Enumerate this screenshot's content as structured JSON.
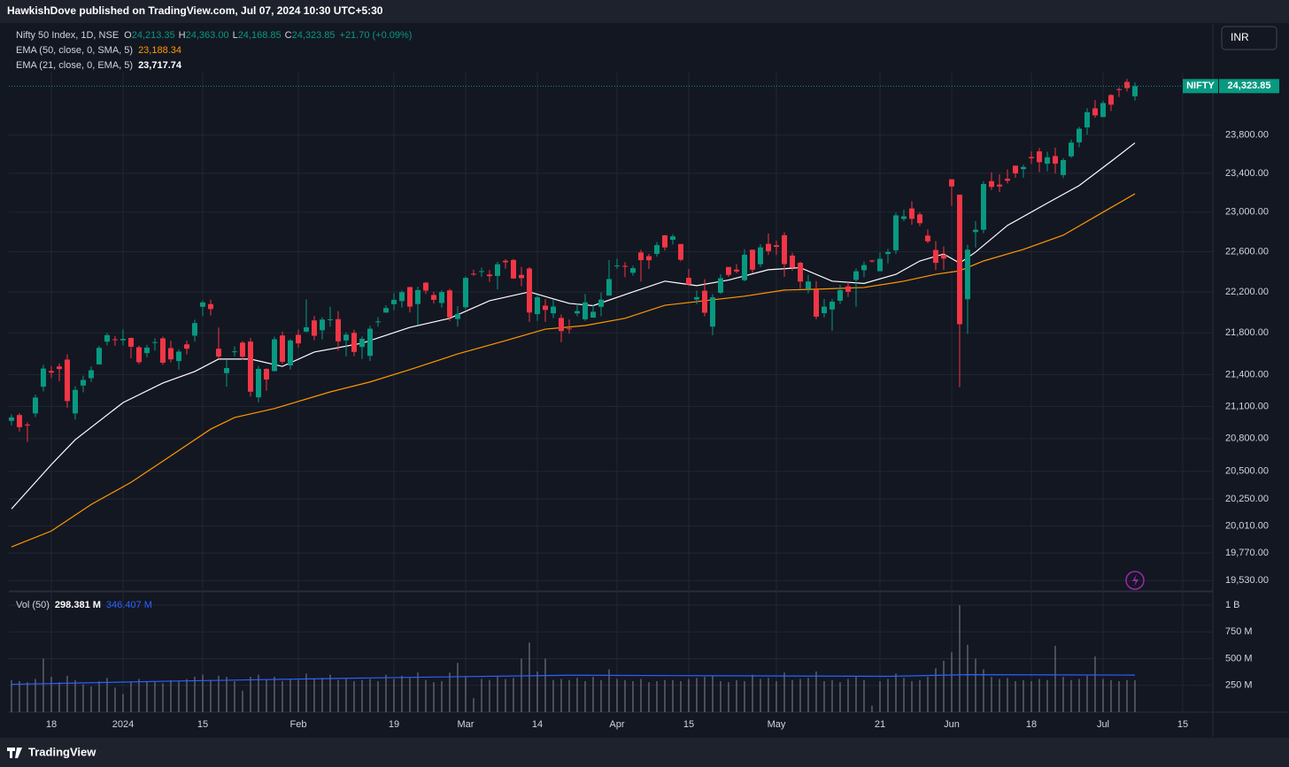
{
  "header": "HawkishDove published on TradingView.com, Jul 07, 2024 10:30 UTC+5:30",
  "brand": "TradingView",
  "currency": "INR",
  "chart_data": {
    "type": "candlestick",
    "legend": {
      "symbol": "Nifty 50 Index, 1D, NSE",
      "ohlc_keys": [
        "O",
        "H",
        "L",
        "C"
      ],
      "ohlc_values": [
        "24,213.35",
        "24,363.00",
        "24,168.85",
        "24,323.85"
      ],
      "change": "+21.70 (+0.09%)"
    },
    "price_tag": {
      "name": "NIFTY",
      "label": "24,323.85"
    },
    "up_color": "#089981",
    "down_color": "#f23645",
    "log_scale": true,
    "grid": true,
    "xlim": [
      -0.33,
      150.78
    ],
    "ylim": [
      19440,
      24490
    ],
    "xticks": [
      {
        "value": 5,
        "label": "18"
      },
      {
        "value": 14,
        "label": "2024"
      },
      {
        "value": 24,
        "label": "15"
      },
      {
        "value": 36,
        "label": "Feb"
      },
      {
        "value": 48,
        "label": "19"
      },
      {
        "value": 57,
        "label": "Mar"
      },
      {
        "value": 66,
        "label": "14"
      },
      {
        "value": 76,
        "label": "Apr"
      },
      {
        "value": 85,
        "label": "15"
      },
      {
        "value": 96,
        "label": "May"
      },
      {
        "value": 109,
        "label": "21"
      },
      {
        "value": 118,
        "label": "Jun"
      },
      {
        "value": 128,
        "label": "18"
      },
      {
        "value": 137,
        "label": "Jul"
      },
      {
        "value": 147,
        "label": "15"
      }
    ],
    "yticks": [
      {
        "value": 23800,
        "label": "23,800.00"
      },
      {
        "value": 23400,
        "label": "23,400.00"
      },
      {
        "value": 23000,
        "label": "23,000.00"
      },
      {
        "value": 22600,
        "label": "22,600.00"
      },
      {
        "value": 22200,
        "label": "22,200.00"
      },
      {
        "value": 21800,
        "label": "21,800.00"
      },
      {
        "value": 21400,
        "label": "21,400.00"
      },
      {
        "value": 21100,
        "label": "21,100.00"
      },
      {
        "value": 20800,
        "label": "20,800.00"
      },
      {
        "value": 20500,
        "label": "20,500.00"
      },
      {
        "value": 20250,
        "label": "20,250.00"
      },
      {
        "value": 20010,
        "label": "20,010.00"
      },
      {
        "value": 19770,
        "label": "19,770.00"
      },
      {
        "value": 19530,
        "label": "19,530.00"
      }
    ],
    "candles": [
      [
        20965,
        21026,
        20923,
        20997
      ],
      [
        21019,
        21037,
        20867,
        20906
      ],
      [
        20930,
        20950,
        20770,
        20926
      ],
      [
        21034,
        21210,
        21000,
        21183
      ],
      [
        21285,
        21493,
        21240,
        21457
      ],
      [
        21434,
        21482,
        21366,
        21419
      ],
      [
        21477,
        21505,
        21337,
        21453
      ],
      [
        21543,
        21593,
        21088,
        21150
      ],
      [
        21034,
        21289,
        20977,
        21255
      ],
      [
        21296,
        21390,
        21232,
        21349
      ],
      [
        21366,
        21477,
        21329,
        21441
      ],
      [
        21497,
        21675,
        21495,
        21655
      ],
      [
        21715,
        21801,
        21678,
        21778
      ],
      [
        21738,
        21770,
        21676,
        21731
      ],
      [
        21728,
        21834,
        21680,
        21742
      ],
      [
        21751,
        21755,
        21555,
        21666
      ],
      [
        21661,
        21677,
        21500,
        21518
      ],
      [
        21605,
        21685,
        21564,
        21658
      ],
      [
        21705,
        21749,
        21629,
        21711
      ],
      [
        21747,
        21763,
        21493,
        21513
      ],
      [
        21653,
        21724,
        21517,
        21545
      ],
      [
        21529,
        21641,
        21448,
        21619
      ],
      [
        21689,
        21726,
        21593,
        21647
      ],
      [
        21773,
        21928,
        21715,
        21895
      ],
      [
        22054,
        22115,
        21963,
        22097
      ],
      [
        22080,
        22124,
        21969,
        22032
      ],
      [
        21647,
        21851,
        21550,
        21572
      ],
      [
        21414,
        21539,
        21285,
        21462
      ],
      [
        21615,
        21670,
        21575,
        21622
      ],
      [
        21706,
        21722,
        21541,
        21571
      ],
      [
        21716,
        21750,
        21192,
        21238
      ],
      [
        21185,
        21482,
        21138,
        21454
      ],
      [
        21454,
        21459,
        21247,
        21353
      ],
      [
        21433,
        21763,
        21430,
        21738
      ],
      [
        21775,
        21813,
        21501,
        21522
      ],
      [
        21487,
        21741,
        21448,
        21726
      ],
      [
        21781,
        21832,
        21658,
        21698
      ],
      [
        21812,
        22127,
        21805,
        21854
      ],
      [
        21921,
        21964,
        21730,
        21772
      ],
      [
        21825,
        21951,
        21737,
        21929
      ],
      [
        21931,
        22054,
        21860,
        21931
      ],
      [
        21933,
        22011,
        21629,
        21718
      ],
      [
        21727,
        21805,
        21574,
        21783
      ],
      [
        21800,
        21831,
        21575,
        21616
      ],
      [
        21664,
        21766,
        21549,
        21743
      ],
      [
        21579,
        21870,
        21530,
        21840
      ],
      [
        21906,
        21953,
        21860,
        21911
      ],
      [
        21997,
        22069,
        21997,
        22041
      ],
      [
        22079,
        22187,
        22021,
        22122
      ],
      [
        22110,
        22216,
        22046,
        22197
      ],
      [
        22248,
        22249,
        21998,
        22055
      ],
      [
        22081,
        22252,
        21875,
        22218
      ],
      [
        22291,
        22298,
        22180,
        22213
      ],
      [
        22170,
        22202,
        22086,
        22122
      ],
      [
        22091,
        22218,
        22045,
        22198
      ],
      [
        22215,
        22230,
        21915,
        21951
      ],
      [
        21935,
        22060,
        21860,
        21983
      ],
      [
        22049,
        22353,
        22027,
        22339
      ],
      [
        22380,
        22420,
        22360,
        22379
      ],
      [
        22403,
        22440,
        22349,
        22406
      ],
      [
        22372,
        22416,
        22300,
        22356
      ],
      [
        22358,
        22498,
        22224,
        22474
      ],
      [
        22509,
        22525,
        22430,
        22494
      ],
      [
        22517,
        22527,
        22330,
        22333
      ],
      [
        22368,
        22447,
        22256,
        22336
      ],
      [
        22432,
        22447,
        21906,
        21998
      ],
      [
        21982,
        22166,
        21917,
        22147
      ],
      [
        22065,
        22129,
        21906,
        22023
      ],
      [
        21990,
        22123,
        21944,
        22056
      ],
      [
        21945,
        21978,
        21710,
        21817
      ],
      [
        21843,
        21931,
        21793,
        21839
      ],
      [
        21989,
        22081,
        21962,
        22012
      ],
      [
        21932,
        22180,
        21918,
        22097
      ],
      [
        21948,
        22073,
        21947,
        22005
      ],
      [
        22053,
        22193,
        21961,
        22124
      ],
      [
        22164,
        22516,
        22164,
        22327
      ],
      [
        22455,
        22530,
        22428,
        22462
      ],
      [
        22458,
        22495,
        22346,
        22453
      ],
      [
        22389,
        22460,
        22361,
        22435
      ],
      [
        22592,
        22619,
        22303,
        22515
      ],
      [
        22555,
        22579,
        22427,
        22514
      ],
      [
        22578,
        22697,
        22550,
        22666
      ],
      [
        22765,
        22768,
        22612,
        22643
      ],
      [
        22720,
        22775,
        22673,
        22754
      ],
      [
        22677,
        22677,
        22504,
        22519
      ],
      [
        22339,
        22427,
        22259,
        22273
      ],
      [
        22125,
        22213,
        22079,
        22148
      ],
      [
        22212,
        22326,
        21961,
        21996
      ],
      [
        21861,
        22180,
        21777,
        22147
      ],
      [
        22191,
        22375,
        22180,
        22336
      ],
      [
        22447,
        22447,
        22349,
        22368
      ],
      [
        22421,
        22476,
        22384,
        22402
      ],
      [
        22316,
        22625,
        22305,
        22570
      ],
      [
        22620,
        22620,
        22385,
        22420
      ],
      [
        22475,
        22675,
        22447,
        22643
      ],
      [
        22679,
        22783,
        22568,
        22605
      ],
      [
        22665,
        22711,
        22567,
        22648
      ],
      [
        22766,
        22795,
        22349,
        22476
      ],
      [
        22561,
        22589,
        22410,
        22442
      ],
      [
        22489,
        22500,
        22232,
        22302
      ],
      [
        22231,
        22368,
        22186,
        22303
      ],
      [
        22224,
        22307,
        21932,
        21958
      ],
      [
        21991,
        22131,
        21950,
        22055
      ],
      [
        22027,
        22131,
        21821,
        22104
      ],
      [
        22113,
        22270,
        22081,
        22217
      ],
      [
        22255,
        22297,
        22151,
        22201
      ],
      [
        22319,
        22432,
        22054,
        22404
      ],
      [
        22415,
        22502,
        22345,
        22466
      ],
      [
        22512,
        22520,
        22490,
        22502
      ],
      [
        22405,
        22591,
        22404,
        22529
      ],
      [
        22577,
        22629,
        22483,
        22597
      ],
      [
        22614,
        22993,
        22577,
        22967
      ],
      [
        22931,
        23026,
        22908,
        22957
      ],
      [
        23038,
        23111,
        22871,
        22932
      ],
      [
        22977,
        22999,
        22858,
        22888
      ],
      [
        22762,
        22825,
        22685,
        22704
      ],
      [
        22617,
        22706,
        22418,
        22488
      ],
      [
        22568,
        22653,
        22417,
        22531
      ],
      [
        23338,
        23338,
        23063,
        23264
      ],
      [
        23180,
        23180,
        21281,
        21884
      ],
      [
        22128,
        22670,
        21791,
        22620
      ],
      [
        22798,
        22910,
        22642,
        22821
      ],
      [
        22821,
        23320,
        22786,
        23290
      ],
      [
        23319,
        23412,
        23227,
        23259
      ],
      [
        23283,
        23389,
        23206,
        23264
      ],
      [
        23344,
        23441,
        23295,
        23323
      ],
      [
        23480,
        23481,
        23354,
        23399
      ],
      [
        23444,
        23490,
        23354,
        23466
      ],
      [
        23570,
        23630,
        23497,
        23557
      ],
      [
        23629,
        23665,
        23413,
        23516
      ],
      [
        23500,
        23625,
        23420,
        23567
      ],
      [
        23580,
        23668,
        23398,
        23501
      ],
      [
        23382,
        23558,
        23350,
        23538
      ],
      [
        23577,
        23754,
        23562,
        23721
      ],
      [
        23724,
        23889,
        23673,
        23868
      ],
      [
        23882,
        24087,
        23805,
        24044
      ],
      [
        24085,
        24174,
        23985,
        24010
      ],
      [
        23992,
        24164,
        23992,
        24141
      ],
      [
        24228,
        24236,
        24056,
        24124
      ],
      [
        24291,
        24309,
        24207,
        24286
      ],
      [
        24369,
        24402,
        24265,
        24302
      ],
      [
        24213.35,
        24363,
        24168.85,
        24323.85
      ]
    ],
    "overlays": [
      {
        "name": "EMA (50, close, 0, SMA, 5)",
        "last_label": "23,188.34",
        "color": "#ff9800",
        "x": [
          0,
          5,
          10,
          15,
          20,
          25,
          28,
          33,
          40,
          45,
          50,
          56,
          62,
          67,
          72,
          77,
          82,
          87,
          92,
          97,
          102,
          107,
          112,
          116,
          119,
          122,
          127,
          132,
          137,
          141
        ],
        "values": [
          19824,
          19964,
          20201,
          20400,
          20642,
          20888,
          20996,
          21080,
          21236,
          21330,
          21447,
          21597,
          21725,
          21836,
          21871,
          21941,
          22069,
          22113,
          22158,
          22218,
          22229,
          22244,
          22306,
          22374,
          22409,
          22507,
          22623,
          22766,
          23000,
          23188.34
        ]
      },
      {
        "name": "EMA (21, close, 0, EMA, 5)",
        "last_label": "23,717.74",
        "color": "#ffffff",
        "x": [
          0,
          5,
          8,
          14,
          19,
          23,
          26,
          30,
          34,
          38,
          44,
          50,
          55,
          60,
          65,
          70,
          73,
          78,
          82,
          86,
          90,
          95,
          99,
          103,
          107,
          111,
          114,
          117,
          119,
          121,
          125,
          130,
          134,
          138,
          141
        ],
        "values": [
          20161,
          20562,
          20790,
          21135,
          21320,
          21429,
          21548,
          21548,
          21478,
          21615,
          21700,
          21853,
          21941,
          22113,
          22200,
          22087,
          22065,
          22200,
          22306,
          22262,
          22317,
          22420,
          22440,
          22306,
          22284,
          22374,
          22507,
          22577,
          22486,
          22596,
          22865,
          23092,
          23273,
          23524,
          23717.74
        ]
      }
    ],
    "volume": {
      "name": "Vol (50)",
      "last_label": "298.381 M",
      "ma_label": "346.407 M",
      "color": "#9598a1",
      "ma_color": "#2962ff",
      "ylim": [
        0,
        1116
      ],
      "yticks": [
        {
          "value": 1000,
          "label": "1 B"
        },
        {
          "value": 750,
          "label": "750 M"
        },
        {
          "value": 500,
          "label": "500 M"
        },
        {
          "value": 250,
          "label": "250 M"
        }
      ],
      "values": [
        300,
        290,
        280,
        310,
        500,
        330,
        280,
        340,
        300,
        260,
        240,
        290,
        320,
        230,
        170,
        280,
        310,
        290,
        280,
        270,
        300,
        290,
        310,
        330,
        350,
        300,
        340,
        330,
        290,
        200,
        330,
        350,
        300,
        330,
        290,
        310,
        300,
        360,
        310,
        320,
        350,
        300,
        310,
        290,
        300,
        310,
        290,
        350,
        310,
        340,
        320,
        370,
        300,
        280,
        290,
        370,
        460,
        330,
        130,
        310,
        300,
        330,
        310,
        320,
        500,
        650,
        380,
        500,
        300,
        310,
        300,
        320,
        290,
        330,
        300,
        400,
        310,
        300,
        290,
        310,
        280,
        290,
        300,
        300,
        290,
        310,
        320,
        330,
        340,
        290,
        280,
        300,
        290,
        350,
        310,
        320,
        290,
        370,
        300,
        310,
        320,
        380,
        290,
        300,
        280,
        310,
        330,
        300,
        60,
        290,
        310,
        360,
        320,
        290,
        300,
        330,
        410,
        480,
        560,
        1000,
        630,
        500,
        400,
        330,
        310,
        320,
        290,
        300,
        290,
        310,
        300,
        620,
        330,
        300,
        310,
        340,
        520,
        310,
        300,
        290,
        300,
        298.381
      ],
      "ma_x": [
        0,
        20,
        45,
        70,
        90,
        110,
        120,
        141
      ],
      "ma_values": [
        260,
        290,
        320,
        345,
        340,
        335,
        350,
        346.407
      ]
    }
  }
}
